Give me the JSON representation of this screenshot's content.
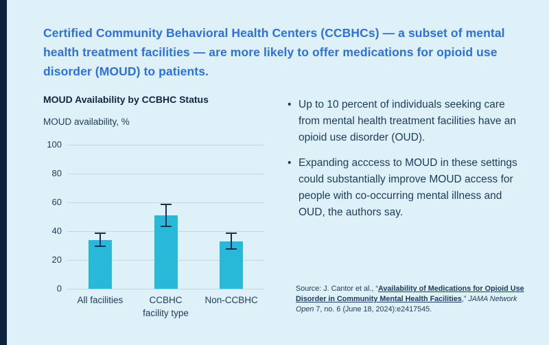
{
  "page": {
    "background_color": "#def1f8",
    "accent_strip_color": "#0c2340"
  },
  "header": {
    "title": "Certified Community Behavioral Health Centers (CCBHCs) — a subset of mental health treatment facilities — are more likely to offer medications for opioid use disorder (MOUD) to patients.",
    "color": "#2d6fe4"
  },
  "chart_data": {
    "type": "bar",
    "title": "MOUD Availability by CCBHC Status",
    "ylabel": "MOUD availability, %",
    "xlabel": "facility type",
    "categories": [
      "All facilities",
      "CCBHC",
      "Non-CCBHC"
    ],
    "values": [
      34,
      51,
      33
    ],
    "error_low": [
      29,
      43,
      27
    ],
    "error_high": [
      39,
      59,
      39
    ],
    "ylim": [
      0,
      100
    ],
    "yticks": [
      0,
      20,
      40,
      60,
      80,
      100
    ],
    "grid": true,
    "legend": "none",
    "bar_color": "#28b8d8",
    "error_bar_color": "#16304f",
    "gridline_color": "#c9d4da",
    "axis_text_color": "#1b3a5e"
  },
  "bullets": [
    "Up to 10 percent of individuals seeking care from mental health treatment facilities have an opioid use disorder (OUD).",
    "Expanding acccess to MOUD in these settings could substantially improve MOUD access for people with co-occurring mental illness and OUD, the authors say."
  ],
  "bullet_marker": "•",
  "source": {
    "prefix": "Source: J. Cantor et al., “",
    "link_text": "Availability of Medications for Opioid Use Disorder in Community Mental Health Facilities",
    "middle": ",” ",
    "journal": "JAMA Network Open",
    "suffix": " 7, no. 6 (June 18, 2024):e2417545."
  }
}
